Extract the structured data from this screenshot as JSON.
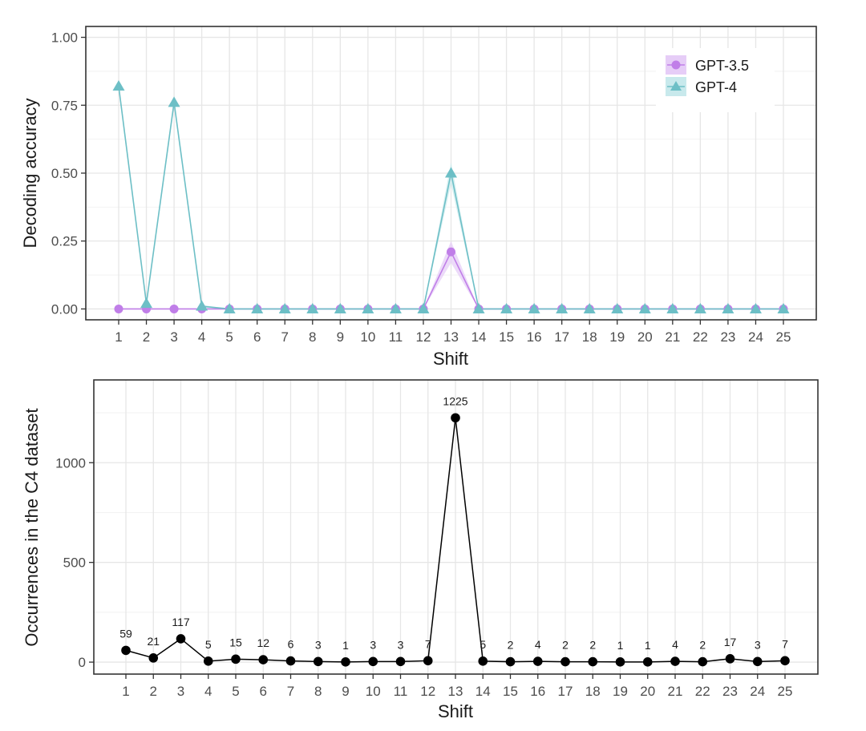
{
  "chart_data": [
    {
      "type": "line",
      "xlabel": "Shift",
      "ylabel": "Decoding accuracy",
      "x": [
        1,
        2,
        3,
        4,
        5,
        6,
        7,
        8,
        9,
        10,
        11,
        12,
        13,
        14,
        15,
        16,
        17,
        18,
        19,
        20,
        21,
        22,
        23,
        24,
        25
      ],
      "ylim": [
        -0.04,
        1.04
      ],
      "yticks": [
        0.0,
        0.25,
        0.5,
        0.75,
        1.0
      ],
      "ytick_labels": [
        "0.00",
        "0.25",
        "0.50",
        "0.75",
        "1.00"
      ],
      "grid": true,
      "legend_position": "top-right",
      "series": [
        {
          "name": "GPT-3.5",
          "color": "#c07ee8",
          "band_color": "#e6cdf7",
          "marker": "circle",
          "values": [
            0,
            0,
            0,
            0,
            0,
            0,
            0,
            0,
            0,
            0,
            0,
            0,
            0.21,
            0,
            0,
            0,
            0,
            0,
            0,
            0,
            0,
            0,
            0,
            0,
            0
          ],
          "band": [
            0,
            0,
            0,
            0,
            0,
            0,
            0,
            0,
            0,
            0,
            0,
            0,
            0.04,
            0,
            0,
            0,
            0,
            0,
            0,
            0,
            0,
            0,
            0,
            0,
            0
          ]
        },
        {
          "name": "GPT-4",
          "color": "#6dbfc6",
          "band_color": "#c8e9ec",
          "marker": "triangle",
          "values": [
            0.82,
            0.02,
            0.76,
            0.01,
            0,
            0,
            0,
            0,
            0,
            0,
            0,
            0,
            0.5,
            0,
            0,
            0,
            0,
            0,
            0,
            0,
            0,
            0,
            0,
            0,
            0
          ],
          "band": [
            0.015,
            0.01,
            0.015,
            0.005,
            0,
            0,
            0,
            0,
            0,
            0,
            0,
            0,
            0.04,
            0,
            0,
            0,
            0,
            0,
            0,
            0,
            0,
            0,
            0,
            0,
            0
          ]
        }
      ]
    },
    {
      "type": "line",
      "xlabel": "Shift",
      "ylabel": "Occurrences in the C4 dataset",
      "x": [
        1,
        2,
        3,
        4,
        5,
        6,
        7,
        8,
        9,
        10,
        11,
        12,
        13,
        14,
        15,
        16,
        17,
        18,
        19,
        20,
        21,
        22,
        23,
        24,
        25
      ],
      "ylim": [
        -60,
        1415
      ],
      "yticks": [
        0,
        500,
        1000
      ],
      "ytick_labels": [
        "0",
        "500",
        "1000"
      ],
      "grid": true,
      "series": [
        {
          "name": "Occurrences",
          "color": "#000000",
          "marker": "circle",
          "values": [
            59,
            21,
            117,
            5,
            15,
            12,
            6,
            3,
            1,
            3,
            3,
            7,
            1225,
            5,
            2,
            4,
            2,
            2,
            1,
            1,
            4,
            2,
            17,
            3,
            7
          ]
        }
      ]
    }
  ]
}
